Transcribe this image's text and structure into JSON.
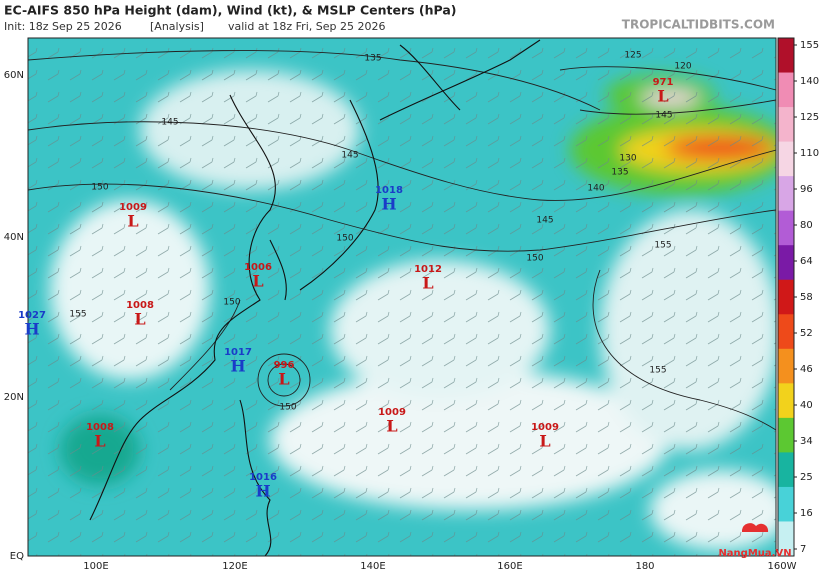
{
  "header": {
    "title": "EC-AIFS 850 hPa Height (dam), Wind (kt), & MSLP Centers (hPa)",
    "init": "Init: 18z Sep 25 2026",
    "analysis": "[Analysis]",
    "valid": "valid at 18z Fri, Sep 25 2026",
    "site": "TROPICALTIDBITS.COM"
  },
  "map": {
    "lat_labels": [
      "60N",
      "40N",
      "20N",
      "EQ"
    ],
    "lon_labels": [
      "100E",
      "120E",
      "140E",
      "160E",
      "180",
      "160W"
    ],
    "centers": [
      {
        "kind": "L",
        "pressure": "1009"
      },
      {
        "kind": "L",
        "pressure": "1006"
      },
      {
        "kind": "L",
        "pressure": "1008"
      },
      {
        "kind": "H",
        "pressure": "1027"
      },
      {
        "kind": "H",
        "pressure": "1017"
      },
      {
        "kind": "L",
        "pressure": "996"
      },
      {
        "kind": "L",
        "pressure": "1008"
      },
      {
        "kind": "H",
        "pressure": "1016"
      },
      {
        "kind": "L",
        "pressure": "1009"
      },
      {
        "kind": "L",
        "pressure": "1009"
      },
      {
        "kind": "L",
        "pressure": "1012"
      },
      {
        "kind": "H",
        "pressure": "1018"
      },
      {
        "kind": "L",
        "pressure": "971"
      }
    ],
    "contour_labels": [
      "135",
      "125",
      "120",
      "145",
      "145",
      "130",
      "135",
      "140",
      "145",
      "150",
      "150",
      "150",
      "155",
      "155",
      "150",
      "155",
      "150",
      "145"
    ]
  },
  "colorbar": {
    "ticks": [
      155,
      140,
      125,
      110,
      96,
      80,
      64,
      58,
      52,
      46,
      40,
      34,
      25,
      16,
      7
    ],
    "colors": [
      "#b0102a",
      "#f08cb4",
      "#f4b4cc",
      "#f6d6e4",
      "#d8a6e6",
      "#b25cd6",
      "#7a1aa6",
      "#d01818",
      "#ee4a1a",
      "#f4901e",
      "#f2d21c",
      "#5cc832",
      "#18b4a0",
      "#48d2d8",
      "#c6f0f2"
    ]
  },
  "logo": "NangMua.VN"
}
